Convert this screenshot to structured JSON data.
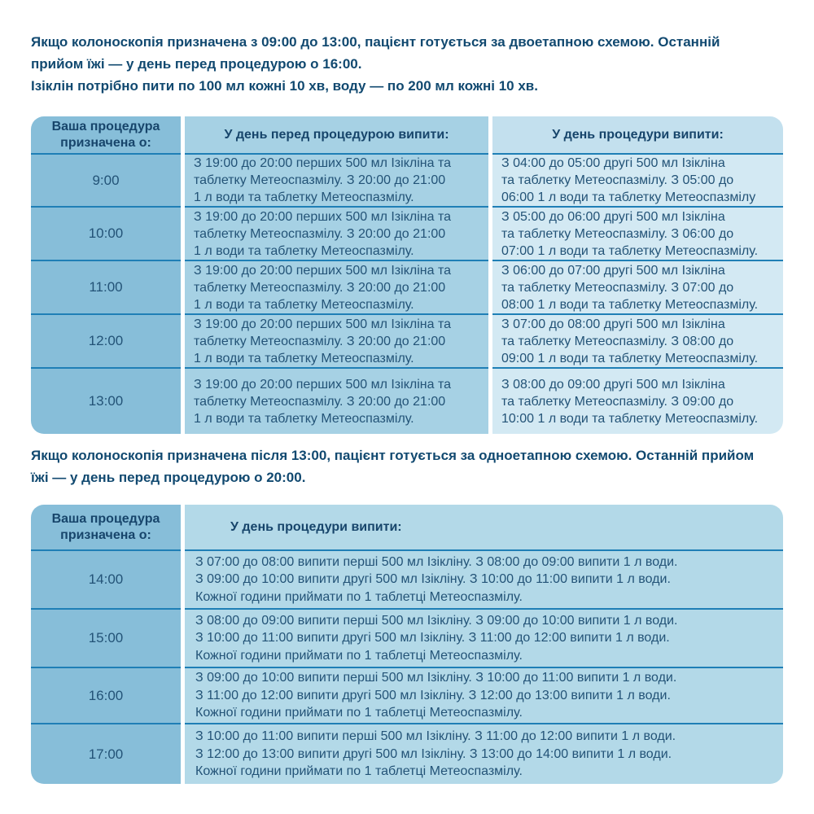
{
  "colors": {
    "text_navy": "#17456b",
    "body_text": "#235377",
    "col_time_bg": "#87bed9",
    "t1_day_before_bg": "#a6d1e4",
    "t1_day_of_header_bg": "#c3e0ee",
    "t1_day_of_body_bg": "#d3e9f3",
    "t2_day_of_bg": "#b3d9e8",
    "divider_line": "#1f7fb6",
    "page_bg": "#ffffff"
  },
  "intro_two_stage": "Якщо колоноскопія призначена з 09:00 до 13:00, пацієнт готується за двоетапною схемою. Останній\nприйом їжі — у день перед процедурою о 16:00.\nІзіклін потрібно пити по 100 мл кожні 10 хв, воду — по 200 мл кожні 10 хв.",
  "intro_one_stage": "Якщо колоноскопія призначена після 13:00, пацієнт готується за одноетапною схемою. Останній прийом\nїжі — у день перед процедурою о 20:00.",
  "table_two_stage": {
    "headers": {
      "time": "Ваша процедура призначена о:",
      "day_before": "У день перед процедурою випити:",
      "day_of": "У день процедури випити:"
    },
    "rows": [
      {
        "time": "9:00",
        "day_before": "З 19:00 до 20:00 перших 500 мл Ізікліна та\nтаблетку Метеоспазмілу. З 20:00 до 21:00\n1 л води та таблетку Метеоспазмілу.",
        "day_of": "З 04:00 до 05:00 другі 500 мл Ізікліна\nта таблетку Метеоспазмілу. З 05:00 до\n06:00 1 л води та таблетку Метеоспазмілу"
      },
      {
        "time": "10:00",
        "day_before": "З 19:00 до 20:00 перших 500 мл Ізікліна та\nтаблетку Метеоспазмілу. З 20:00 до 21:00\n1 л води  та таблетку Метеоспазмілу.",
        "day_of": "З 05:00 до 06:00 другі 500 мл Ізікліна\nта таблетку Метеоспазмілу. З 06:00 до\n07:00 1 л води та таблетку Метеоспазмілу."
      },
      {
        "time": "11:00",
        "day_before": "З 19:00 до 20:00 перших 500 мл Ізікліна та\nтаблетку Метеоспазмілу. З 20:00 до 21:00\n1 л води та таблетку Метеоспазмілу.",
        "day_of": "З 06:00 до 07:00 другі 500 мл Ізікліна\nта таблетку Метеоспазмілу. З 07:00 до\n08:00 1 л води та таблетку Метеоспазмілу."
      },
      {
        "time": "12:00",
        "day_before": "З 19:00 до 20:00 перших 500 мл Ізікліна та\nтаблетку Метеоспазмілу. З 20:00 до 21:00\n1 л води та таблетку Метеоспазмілу.",
        "day_of": "З 07:00 до 08:00 другі 500 мл Ізікліна\nта таблетку Метеоспазмілу. З 08:00 до\n09:00 1 л води та таблетку Метеоспазмілу."
      },
      {
        "time": "13:00",
        "day_before": "З 19:00 до 20:00 перших 500 мл Ізікліна та\nтаблетку Метеоспазмілу. З 20:00 до 21:00\n1 л води та таблетку Метеоспазмілу.",
        "day_of": "З 08:00 до 09:00 другі 500 мл Ізікліна\nта таблетку Метеоспазмілу. З 09:00 до\n10:00 1 л води та таблетку Метеоспазмілу."
      }
    ]
  },
  "table_one_stage": {
    "headers": {
      "time": "Ваша процедура призначена о:",
      "day_of": "У день процедури випити:"
    },
    "rows": [
      {
        "time": "14:00",
        "day_of": "З 07:00 до 08:00 випити перші 500 мл Ізікліну. З 08:00 до 09:00 випити 1 л води.\nЗ 09:00 до 10:00 випити другі 500 мл Ізікліну. З 10:00 до 11:00 випити 1 л води.\nКожної години приймати по 1 таблетці Метеоспазмілу."
      },
      {
        "time": "15:00",
        "day_of": "З 08:00 до 09:00 випити перші 500 мл Ізікліну. З 09:00 до 10:00 випити 1 л води.\nЗ 10:00 до 11:00 випити другі 500 мл Ізікліну. З 11:00 до 12:00 випити 1 л води.\nКожної години приймати по 1 таблетці Метеоспазмілу."
      },
      {
        "time": "16:00",
        "day_of": "З 09:00 до 10:00 випити перші 500 мл Ізікліну. З 10:00 до 11:00 випити 1 л води.\nЗ 11:00 до 12:00 випити другі 500 мл Ізікліну. З 12:00 до 13:00 випити 1 л води.\nКожної години приймати по 1 таблетці Метеоспазмілу."
      },
      {
        "time": "17:00",
        "day_of": "З 10:00 до 11:00 випити перші 500 мл Ізікліну. З 11:00 до 12:00 випити 1 л води.\nЗ 12:00 до 13:00 випити другі 500 мл Ізікліну. З 13:00 до 14:00 випити 1 л води.\nКожної години приймати по 1 таблетці Метеоспазмілу."
      }
    ]
  }
}
